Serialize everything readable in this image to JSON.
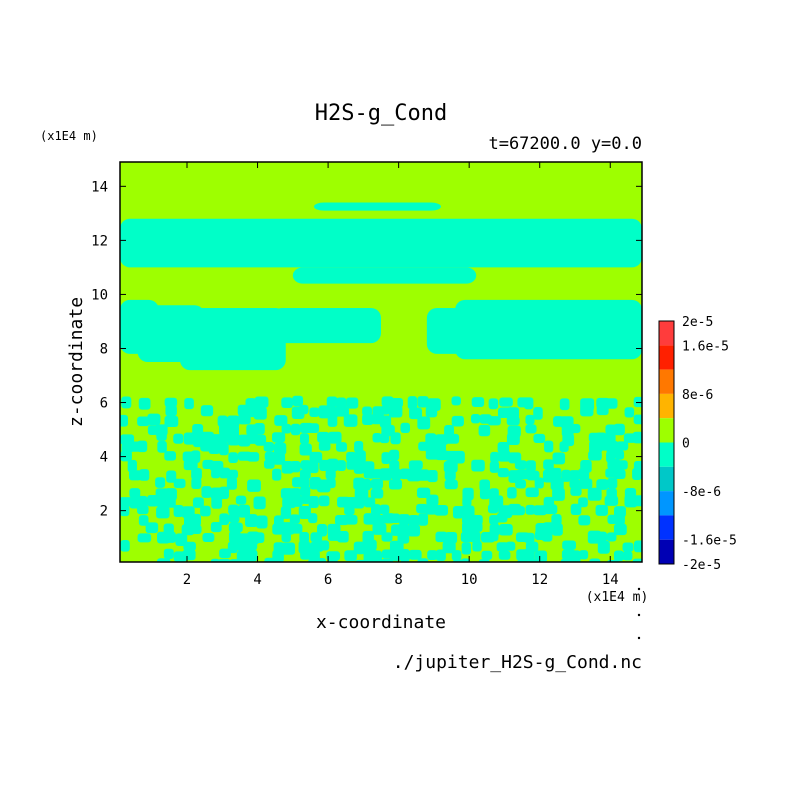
{
  "chart_data": {
    "type": "heatmap",
    "title": "H2S-g_Cond",
    "subtitle": "t=67200.0 y=0.0",
    "xlabel": "x-coordinate",
    "ylabel": "z-coordinate",
    "x_unit": "(x1E4 m)",
    "y_unit": "(x1E4 m)",
    "xlim": [
      0.1,
      14.9
    ],
    "ylim": [
      0.1,
      14.9
    ],
    "xticks": [
      2,
      4,
      6,
      8,
      10,
      12,
      14
    ],
    "yticks": [
      2,
      4,
      6,
      8,
      10,
      12,
      14
    ],
    "grid": false,
    "footer": "./jupiter_H2S-g_Cond.nc",
    "background_value": 0,
    "field_colors": {
      "zero": "#9eff00",
      "negative": "#00ffc8"
    },
    "regions": [
      {
        "value": -8e-06,
        "x": [
          0.1,
          1.2
        ],
        "z": [
          7.8,
          9.8
        ]
      },
      {
        "value": -8e-06,
        "x": [
          0.6,
          2.5
        ],
        "z": [
          7.5,
          9.6
        ]
      },
      {
        "value": -8e-06,
        "x": [
          1.8,
          4.8
        ],
        "z": [
          7.2,
          9.5
        ]
      },
      {
        "value": -8e-06,
        "x": [
          4.4,
          7.5
        ],
        "z": [
          8.2,
          9.5
        ]
      },
      {
        "value": -8e-06,
        "x": [
          9.6,
          14.9
        ],
        "z": [
          7.6,
          9.8
        ]
      },
      {
        "value": -8e-06,
        "x": [
          8.8,
          11.8
        ],
        "z": [
          7.8,
          9.5
        ]
      },
      {
        "value": -8e-06,
        "x": [
          0.1,
          14.9
        ],
        "z": [
          11.0,
          12.8
        ]
      },
      {
        "value": -8e-06,
        "x": [
          5.0,
          10.2
        ],
        "z": [
          10.4,
          11.0
        ]
      },
      {
        "value": -8e-06,
        "x": [
          5.6,
          9.2
        ],
        "z": [
          13.1,
          13.4
        ]
      },
      {
        "value": -8e-06,
        "x": [
          0.1,
          14.9
        ],
        "z": [
          0.1,
          6.2
        ],
        "pattern": "mottled"
      }
    ],
    "colorbar": {
      "ticks": [
        {
          "label": "2e-5",
          "value": 2e-05
        },
        {
          "label": "1.6e-5",
          "value": 1.6e-05
        },
        {
          "label": "8e-6",
          "value": 8e-06
        },
        {
          "label": "0",
          "value": 0
        },
        {
          "label": "-8e-6",
          "value": -8e-06
        },
        {
          "label": "-1.6e-5",
          "value": -1.6e-05
        },
        {
          "label": "-2e-5",
          "value": -2e-05
        }
      ],
      "levels": [
        {
          "from": 1.6e-05,
          "to": 2e-05,
          "color": "#ff3c3c"
        },
        {
          "from": 1.2e-05,
          "to": 1.6e-05,
          "color": "#ff2000"
        },
        {
          "from": 8e-06,
          "to": 1.2e-05,
          "color": "#ff7800"
        },
        {
          "from": 4e-06,
          "to": 8e-06,
          "color": "#ffb400"
        },
        {
          "from": 0,
          "to": 4e-06,
          "color": "#9eff00"
        },
        {
          "from": -4e-06,
          "to": 0,
          "color": "#00ffc8"
        },
        {
          "from": -8e-06,
          "to": -4e-06,
          "color": "#00c8c8"
        },
        {
          "from": -1.2e-05,
          "to": -8e-06,
          "color": "#0096ff"
        },
        {
          "from": -1.6e-05,
          "to": -1.2e-05,
          "color": "#0032ff"
        },
        {
          "from": -2e-05,
          "to": -1.6e-05,
          "color": "#0000b4"
        }
      ]
    }
  }
}
